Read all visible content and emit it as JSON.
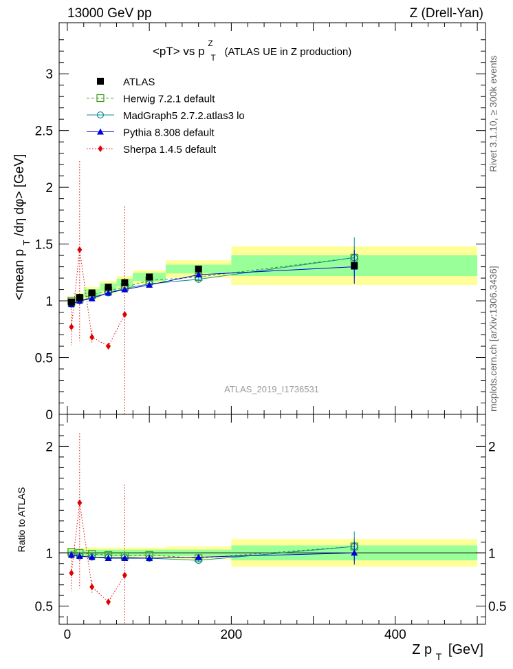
{
  "header": {
    "left": "13000 GeV pp",
    "right": "Z (Drell-Yan)"
  },
  "side_labels": {
    "rivet": "Rivet 3.1.10, ≥ 300k events",
    "mcplots": "mcplots.cern.ch [arXiv:1306.3436]"
  },
  "chart_data": {
    "type": "scatter",
    "title_main": "<pT> vs p",
    "title_sup": "Z",
    "title_sub": "T",
    "title_rest": "(ATLAS UE in Z production)",
    "analysis_label": "ATLAS_2019_I1736531",
    "xlabel_main": "Z p",
    "xlabel_sub": "T",
    "xlabel_unit": "[GeV]",
    "ylabel_main": "<mean p",
    "ylabel_sub": "T",
    "ylabel_rest": "/dη dφ> [GeV]",
    "ratio_ylabel": "Ratio to ATLAS",
    "xlim": [
      -10,
      510
    ],
    "ylim": [
      0,
      3.45
    ],
    "ratio_ylim": [
      0.33,
      2.3
    ],
    "xticks": [
      0,
      200,
      400
    ],
    "yticks": [
      0,
      0.5,
      1,
      1.5,
      2,
      2.5,
      3
    ],
    "yticks_labels": [
      "0",
      "0.5",
      "1",
      "1.5",
      "2",
      "2.5",
      "3"
    ],
    "ratio_yticks": [
      0.5,
      1,
      2
    ],
    "ratio_yticks_labels": [
      "0.5",
      "1",
      "2"
    ],
    "data": {
      "name": "ATLAS",
      "color": "#000000",
      "x": [
        5,
        15,
        30,
        50,
        70,
        100,
        160,
        350
      ],
      "y": [
        0.99,
        1.03,
        1.07,
        1.12,
        1.16,
        1.21,
        1.28,
        1.31
      ],
      "bins": [
        [
          0,
          10
        ],
        [
          10,
          20
        ],
        [
          20,
          40
        ],
        [
          40,
          60
        ],
        [
          60,
          80
        ],
        [
          80,
          120
        ],
        [
          120,
          200
        ],
        [
          200,
          500
        ]
      ],
      "band_inner": [
        0.03,
        0.03,
        0.03,
        0.03,
        0.03,
        0.03,
        0.03,
        0.07
      ],
      "band_outer": [
        0.04,
        0.04,
        0.05,
        0.05,
        0.05,
        0.05,
        0.06,
        0.13
      ]
    },
    "series": [
      {
        "name": "Herwig 7.2.1 default",
        "color": "#3a9a1a",
        "marker": "open-square",
        "dash": "4,3",
        "x": [
          5,
          15,
          30,
          50,
          70,
          100,
          160,
          350
        ],
        "y": [
          1.0,
          1.02,
          1.05,
          1.09,
          1.12,
          1.18,
          1.21,
          1.38
        ],
        "err": [
          0.01,
          0.01,
          0.01,
          0.01,
          0.01,
          0.01,
          0.02,
          0.1
        ],
        "ratio": [
          1.01,
          1.0,
          0.99,
          0.98,
          0.97,
          0.98,
          0.95,
          1.06
        ],
        "ratio_err": [
          0.01,
          0.01,
          0.01,
          0.01,
          0.01,
          0.01,
          0.02,
          0.08
        ]
      },
      {
        "name": "MadGraph5 2.7.2.atlas3 lo",
        "color": "#0f8c9a",
        "marker": "open-circle",
        "dash": "",
        "x": [
          5,
          15,
          30,
          50,
          70,
          100,
          160,
          350
        ],
        "y": [
          0.97,
          1.0,
          1.03,
          1.07,
          1.11,
          1.15,
          1.19,
          1.38
        ],
        "err": [
          0.01,
          0.01,
          0.01,
          0.01,
          0.01,
          0.01,
          0.02,
          0.18
        ],
        "ratio": [
          0.98,
          0.97,
          0.96,
          0.96,
          0.96,
          0.95,
          0.93,
          1.06
        ],
        "ratio_err": [
          0.01,
          0.01,
          0.01,
          0.01,
          0.01,
          0.01,
          0.02,
          0.14
        ]
      },
      {
        "name": "Pythia 8.308 default",
        "color": "#0000d8",
        "marker": "filled-triangle",
        "dash": "",
        "x": [
          5,
          15,
          30,
          50,
          70,
          100,
          160,
          350
        ],
        "y": [
          0.97,
          1.0,
          1.02,
          1.07,
          1.1,
          1.14,
          1.23,
          1.3
        ],
        "err": [
          0.01,
          0.01,
          0.01,
          0.01,
          0.01,
          0.01,
          0.02,
          0.15
        ],
        "ratio": [
          0.98,
          0.97,
          0.96,
          0.95,
          0.95,
          0.95,
          0.96,
          1.0
        ],
        "ratio_err": [
          0.01,
          0.01,
          0.01,
          0.01,
          0.01,
          0.01,
          0.02,
          0.11
        ]
      },
      {
        "name": "Sherpa 1.4.5 default",
        "color": "#e00000",
        "marker": "filled-diamond",
        "dash": "1.5,2.5",
        "x": [
          5,
          15,
          30,
          50,
          70
        ],
        "y": [
          0.77,
          1.45,
          0.68,
          0.6,
          0.88
        ],
        "err_lo": [
          0.16,
          0.8,
          0.06,
          0.03,
          0.88
        ],
        "err_hi": [
          0.16,
          0.78,
          0.06,
          0.03,
          0.95
        ],
        "ratio": [
          0.81,
          1.47,
          0.68,
          0.54,
          0.79
        ],
        "ratio_err_lo": [
          0.17,
          0.8,
          0.06,
          0.03,
          0.6
        ],
        "ratio_err_hi": [
          0.17,
          0.65,
          0.06,
          0.03,
          0.85
        ]
      }
    ],
    "legend_position": "top-left"
  }
}
